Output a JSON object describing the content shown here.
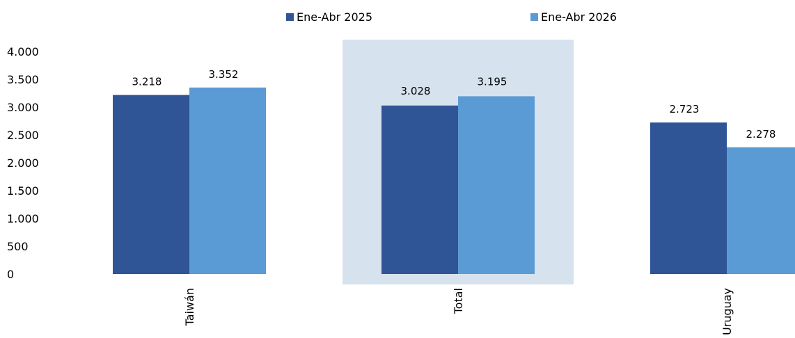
{
  "chart_data": {
    "type": "bar",
    "title": "",
    "xlabel": "",
    "ylabel": "",
    "categories": [
      "Taiwán",
      "Total",
      "Uruguay"
    ],
    "highlight_category": "Total",
    "series": [
      {
        "name": "Ene-Abr 2025",
        "values": [
          3218,
          3028,
          2723
        ],
        "labels": [
          "3.218",
          "3.028",
          "2.723"
        ],
        "color": "#2f5597"
      },
      {
        "name": "Ene-Abr 2026",
        "values": [
          3352,
          3195,
          2278
        ],
        "labels": [
          "3.352",
          "3.195",
          "2.278"
        ],
        "color": "#5b9bd5"
      }
    ],
    "yticks": [
      0,
      500,
      1000,
      1500,
      2000,
      2500,
      3000,
      3500,
      4000
    ],
    "ytick_labels": [
      "0",
      "500",
      "1.000",
      "1.500",
      "2.000",
      "2.500",
      "3.000",
      "3.500",
      "4.000"
    ],
    "ylim": [
      0,
      4000
    ],
    "legend_position": "top-center",
    "grid": false,
    "highlight_color": "#d6e2ee"
  }
}
